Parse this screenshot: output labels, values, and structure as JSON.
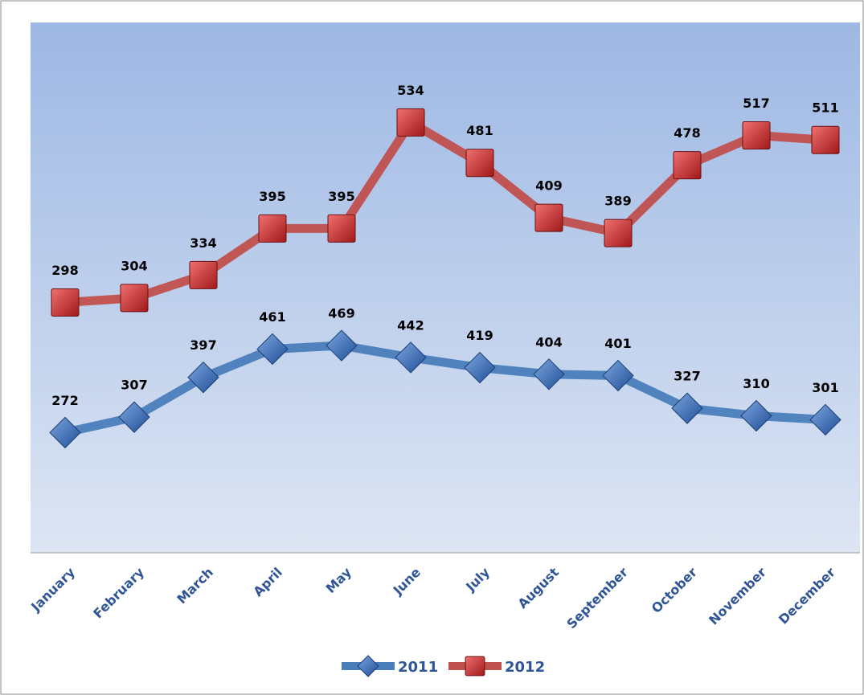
{
  "chart_data": {
    "type": "line",
    "categories": [
      "January",
      "February",
      "March",
      "April",
      "May",
      "June",
      "July",
      "August",
      "September",
      "October",
      "November",
      "December"
    ],
    "series": [
      {
        "name": "2011",
        "color": "#4a7ebb",
        "marker": "diamond",
        "values": [
          272,
          307,
          397,
          461,
          469,
          442,
          419,
          404,
          401,
          327,
          310,
          301
        ]
      },
      {
        "name": "2012",
        "color": "#c0504d",
        "marker": "square",
        "axis": "y2",
        "values": [
          298,
          304,
          334,
          395,
          395,
          534,
          481,
          409,
          389,
          478,
          517,
          511
        ]
      }
    ],
    "ylim": [
      0,
      1200
    ],
    "y2lim": [
      -30,
      665
    ],
    "legend": "bottom",
    "grid": false
  }
}
